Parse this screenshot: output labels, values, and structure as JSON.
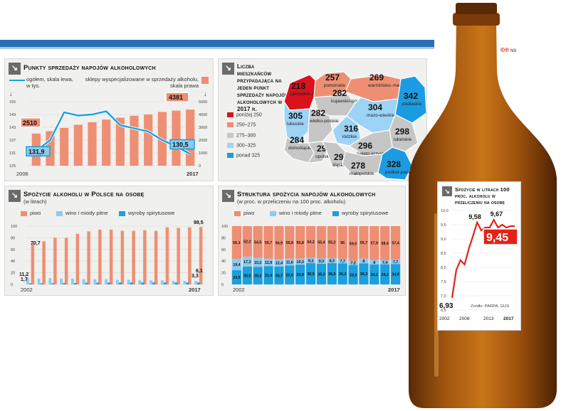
{
  "colors": {
    "beer": "#ee8f73",
    "wine": "#8dcaf0",
    "spirits": "#1aa0dc",
    "line": "#1aa0dc",
    "red": "#e2231a",
    "gray": "#c9c9c9",
    "map_red": "#d9121c",
    "map_orange": "#ee8f73",
    "map_gray": "#c6c6c6",
    "map_light": "#9dd3f4",
    "map_blue": "#1b9ce2"
  },
  "logo": {
    "text": "©℗",
    "ns": "NS"
  },
  "panel1": {
    "title": "Punkty sprzedaży napojów alkoholowych",
    "legend_line": "ogółem, skala lewa, w tys.",
    "legend_bar": "sklepy wyspecjalizowane w sprzedaży alkoholu, skala prawa",
    "left_ticks": [
      "155",
      "149",
      "143",
      "137",
      "131",
      "125"
    ],
    "right_ticks": [
      "5000",
      "4000",
      "3000",
      "2000",
      "1000",
      "0"
    ],
    "year_start": "2006",
    "year_end": "2017",
    "label_bar_first": "2510",
    "label_bar_last": "4381",
    "label_line_first": "131,9",
    "label_line_last": "130,5"
  },
  "panel2": {
    "title": "Liczba mieszkańców przypadająca na jeden punkt sprzedaży napojów alkoholowych w 2017 r.",
    "legend": [
      {
        "label": "poniżej 250",
        "color": "#d9121c"
      },
      {
        "label": "250–275",
        "color": "#ee8f73"
      },
      {
        "label": "275–300",
        "color": "#c6c6c6"
      },
      {
        "label": "300–325",
        "color": "#9dd3f4"
      },
      {
        "label": "ponad 325",
        "color": "#1b9ce2"
      }
    ],
    "regions": [
      {
        "value": "218",
        "name": "zachodnio-pomorskie"
      },
      {
        "value": "257",
        "name": "pomorskie"
      },
      {
        "value": "269",
        "name": "warmińsko--mazurskie"
      },
      {
        "value": "342",
        "name": "podlaskie"
      },
      {
        "value": "305",
        "name": "lubuskie"
      },
      {
        "value": "282",
        "name": "kujawsko-pomorskie"
      },
      {
        "value": "282",
        "name": "wielko-polskie"
      },
      {
        "value": "304",
        "name": "mazo-wieckie"
      },
      {
        "value": "316",
        "name": "łódzkie"
      },
      {
        "value": "298",
        "name": "lubelskie"
      },
      {
        "value": "284",
        "name": "dolnośląskie"
      },
      {
        "value": "299",
        "name": "opolskie"
      },
      {
        "value": "295",
        "name": "śląskie"
      },
      {
        "value": "296",
        "name": "święto-krzyskie"
      },
      {
        "value": "278",
        "name": "małopolskie"
      },
      {
        "value": "328",
        "name": "podkar-packie"
      }
    ]
  },
  "panel3": {
    "title": "Spożycie alkoholu w Polsce na osobę",
    "subtitle": "(w litrach)",
    "legend": [
      "piwo",
      "wino i miody pitne",
      "wyroby spirytusowe"
    ],
    "ticks": [
      "100",
      "80",
      "60",
      "40",
      "20",
      "0"
    ],
    "year_start": "2002",
    "year_end": "2017",
    "labels_first": [
      "70,7",
      "11,2",
      "1,7"
    ],
    "labels_last": [
      "98,5",
      "6,1",
      "3,3"
    ]
  },
  "panel4": {
    "title": "Struktura spożycia napojów alkoholowych",
    "subtitle": "(w proc. w przeliczeniu na 100 proc. alkoholu)",
    "legend": [
      "piwo",
      "wino i miody pitne",
      "wyroby spirytusowe"
    ],
    "ticks": [
      "100",
      "80",
      "60",
      "40",
      "20",
      "0"
    ],
    "year_start": "2002",
    "year_end": "2017"
  },
  "panel5": {
    "title": "Spożycie w litrach 100 proc. alkoholu w przeliczeniu na osobę",
    "ticks": [
      "10,0",
      "9,5",
      "9,0",
      "8,5",
      "8,0",
      "7,5",
      "7,0",
      "6,5"
    ],
    "years": [
      "2002",
      "2008",
      "2013",
      "2017"
    ],
    "source": "Źródło: PARPA, GUS",
    "labels": [
      "6,93",
      "9,58",
      "9,67",
      "9,45"
    ]
  },
  "chart_data": [
    {
      "type": "bar+line",
      "title": "Punkty sprzedaży napojów alkoholowych",
      "x": [
        "2006",
        "2007",
        "2008",
        "2009",
        "2010",
        "2011",
        "2012",
        "2013",
        "2014",
        "2015",
        "2016",
        "2017"
      ],
      "series": [
        {
          "name": "sklepy wyspecjalizowane w sprzedaży alkoholu, skala prawa",
          "type": "bar",
          "values": [
            2510,
            2700,
            2950,
            3200,
            3400,
            3600,
            3750,
            3900,
            4000,
            4200,
            4300,
            4381
          ]
        },
        {
          "name": "ogółem, skala lewa, w tys.",
          "type": "line",
          "values": [
            131.9,
            137.0,
            150.0,
            148.5,
            149.0,
            150.5,
            144.0,
            142.5,
            141.0,
            137.0,
            134.0,
            130.5
          ]
        }
      ],
      "ylim_left": [
        125,
        155
      ],
      "ylim_right": [
        0,
        5000
      ]
    },
    {
      "type": "bar",
      "title": "Spożycie alkoholu w Polsce na osobę",
      "x": [
        "2002",
        "2003",
        "2004",
        "2005",
        "2006",
        "2007",
        "2008",
        "2009",
        "2010",
        "2011",
        "2012",
        "2013",
        "2014",
        "2015",
        "2016",
        "2017"
      ],
      "series": [
        {
          "name": "piwo",
          "values": [
            70.7,
            74,
            80,
            80,
            87,
            91,
            94,
            94,
            92,
            92,
            93,
            92,
            98,
            97,
            98,
            98.5
          ]
        },
        {
          "name": "wino i miody pitne",
          "values": [
            11.2,
            10,
            11,
            10,
            10,
            9,
            9,
            9,
            8,
            8,
            7,
            7,
            7,
            6,
            6,
            6.1
          ]
        },
        {
          "name": "wyroby spirytusowe",
          "values": [
            1.7,
            1.8,
            2,
            2.2,
            2.5,
            2.8,
            3,
            3.2,
            3.2,
            3.3,
            3.3,
            3.2,
            3.3,
            3.3,
            3.3,
            3.3
          ]
        }
      ],
      "ylim": [
        0,
        100
      ]
    },
    {
      "type": "stacked_bar",
      "title": "Struktura spożycia napojów alkoholowych",
      "x": [
        "2002",
        "2003",
        "2004",
        "2005",
        "2006",
        "2007",
        "2008",
        "2009",
        "2010",
        "2011",
        "2012",
        "2013",
        "2014",
        "2015",
        "2016",
        "2017"
      ],
      "series": [
        {
          "name": "piwo",
          "values": [
            56.1,
            52.2,
            54.5,
            55.7,
            56.9,
            55.8,
            55.8,
            54.2,
            55.4,
            55.2,
            56,
            59.5,
            55.7,
            57.9,
            58.4,
            57.4
          ]
        },
        {
          "name": "wino i miody pitne",
          "values": [
            19.4,
            17.3,
            15.3,
            12.9,
            12.4,
            11.6,
            10.3,
            9.3,
            9.3,
            8.3,
            7.7,
            7.2,
            8,
            8,
            7.4,
            7.7
          ]
        },
        {
          "name": "wyroby spirytusowe",
          "values": [
            24.5,
            30.5,
            30.2,
            31.4,
            30.7,
            32.6,
            33.9,
            36.5,
            35.3,
            36.5,
            36.3,
            33.3,
            36.3,
            34.1,
            34.2,
            34.9
          ]
        }
      ],
      "ylim": [
        0,
        100
      ]
    },
    {
      "type": "line",
      "title": "Spożycie w litrach 100 proc. alkoholu w przeliczeniu na osobę",
      "x": [
        "2002",
        "2003",
        "2004",
        "2005",
        "2006",
        "2007",
        "2008",
        "2009",
        "2010",
        "2011",
        "2012",
        "2013",
        "2014",
        "2015",
        "2016",
        "2017"
      ],
      "series": [
        {
          "name": "",
          "values": [
            6.93,
            7.9,
            8.25,
            8.1,
            8.65,
            9.1,
            9.58,
            9.3,
            9.4,
            9.4,
            9.67,
            9.4,
            9.5,
            9.4,
            9.45,
            9.45
          ]
        }
      ],
      "ylim": [
        6.5,
        10.0
      ]
    }
  ]
}
